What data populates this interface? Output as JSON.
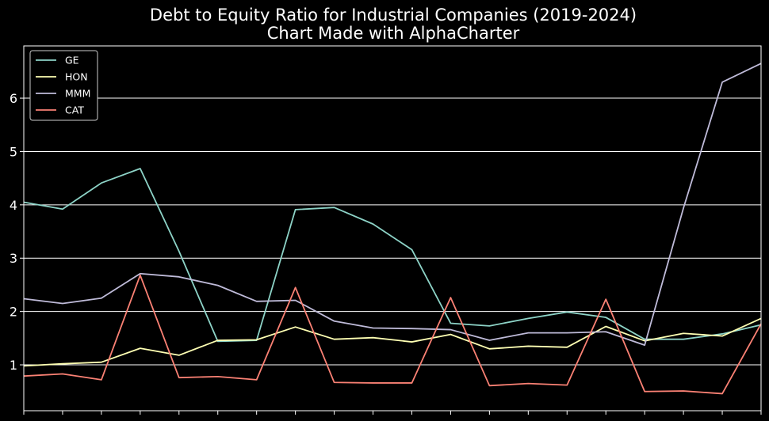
{
  "chart_data": {
    "type": "line",
    "title": "Debt to Equity Ratio for Industrial Companies (2019-2024)",
    "subtitle": "Chart Made with AlphaCharter",
    "xlabel": "",
    "ylabel": "",
    "x": [
      1,
      2,
      3,
      4,
      5,
      6,
      7,
      8,
      9,
      10,
      11,
      12,
      13,
      14,
      15,
      16,
      17,
      18,
      19,
      20
    ],
    "ylim": [
      0.14,
      6.98
    ],
    "yticks": [
      1,
      2,
      3,
      4,
      5,
      6
    ],
    "grid": "horizontal",
    "legend": "top-left",
    "series": [
      {
        "name": "GE",
        "color": "#8dd3c7",
        "values": [
          4.05,
          3.92,
          4.41,
          4.68,
          3.13,
          1.44,
          1.46,
          3.91,
          3.95,
          3.64,
          3.16,
          1.78,
          1.73,
          1.87,
          1.99,
          1.89,
          1.48,
          1.48,
          1.58,
          1.75
        ]
      },
      {
        "name": "HON",
        "color": "#feffb3",
        "values": [
          0.98,
          1.02,
          1.05,
          1.31,
          1.18,
          1.46,
          1.47,
          1.71,
          1.48,
          1.51,
          1.43,
          1.57,
          1.3,
          1.35,
          1.33,
          1.72,
          1.45,
          1.59,
          1.54,
          1.87
        ]
      },
      {
        "name": "MMM",
        "color": "#bfbbd9",
        "values": [
          2.24,
          2.15,
          2.25,
          2.71,
          2.65,
          2.49,
          2.19,
          2.21,
          1.82,
          1.69,
          1.68,
          1.66,
          1.46,
          1.6,
          1.6,
          1.62,
          1.37,
          3.94,
          6.3,
          6.65
        ]
      },
      {
        "name": "CAT",
        "color": "#fa8174",
        "values": [
          0.79,
          0.83,
          0.72,
          2.68,
          0.76,
          0.78,
          0.72,
          2.45,
          0.67,
          0.66,
          0.66,
          2.26,
          0.61,
          0.65,
          0.62,
          2.23,
          0.5,
          0.51,
          0.46,
          1.77
        ]
      }
    ]
  }
}
